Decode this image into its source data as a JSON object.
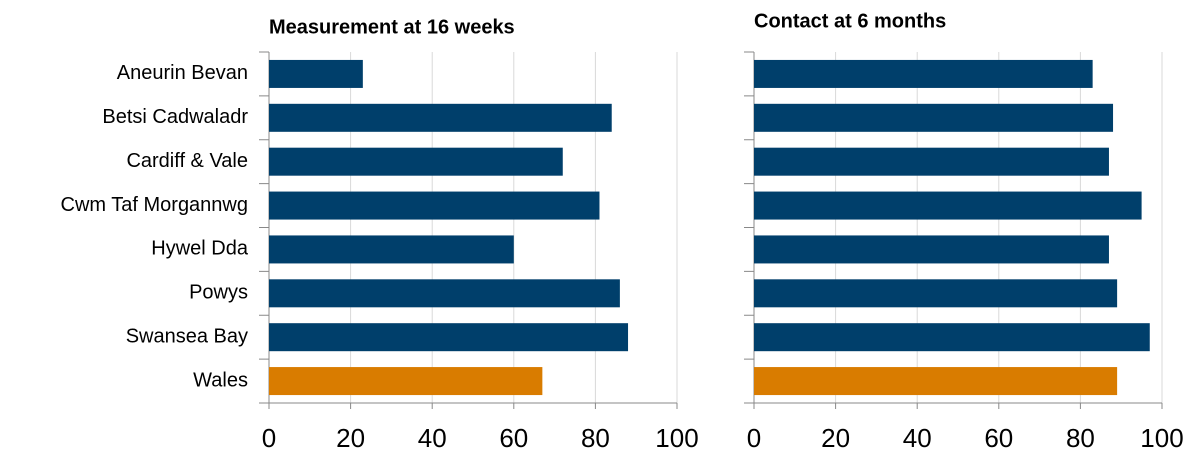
{
  "chart_data": [
    {
      "type": "bar",
      "orientation": "horizontal",
      "title": "Measurement at 16 weeks",
      "categories": [
        "Aneurin Bevan",
        "Betsi Cadwaladr",
        "Cardiff & Vale",
        "Cwm Taf Morgannwg",
        "Hywel Dda",
        "Powys",
        "Swansea Bay",
        "Wales"
      ],
      "values": [
        23,
        84,
        72,
        81,
        60,
        86,
        88,
        67
      ],
      "colors": [
        "#003f6b",
        "#003f6b",
        "#003f6b",
        "#003f6b",
        "#003f6b",
        "#003f6b",
        "#003f6b",
        "#d97c00"
      ],
      "xlim": [
        0,
        100
      ],
      "xticks": [
        0,
        20,
        40,
        60,
        80,
        100
      ],
      "grid": true
    },
    {
      "type": "bar",
      "orientation": "horizontal",
      "title": "Contact at 6 months",
      "values": [
        83,
        88,
        87,
        95,
        87,
        89,
        97,
        89
      ],
      "colors": [
        "#003f6b",
        "#003f6b",
        "#003f6b",
        "#003f6b",
        "#003f6b",
        "#003f6b",
        "#003f6b",
        "#d97c00"
      ],
      "xlim": [
        0,
        100
      ],
      "xticks": [
        0,
        20,
        40,
        60,
        80,
        100
      ],
      "grid": true
    }
  ]
}
